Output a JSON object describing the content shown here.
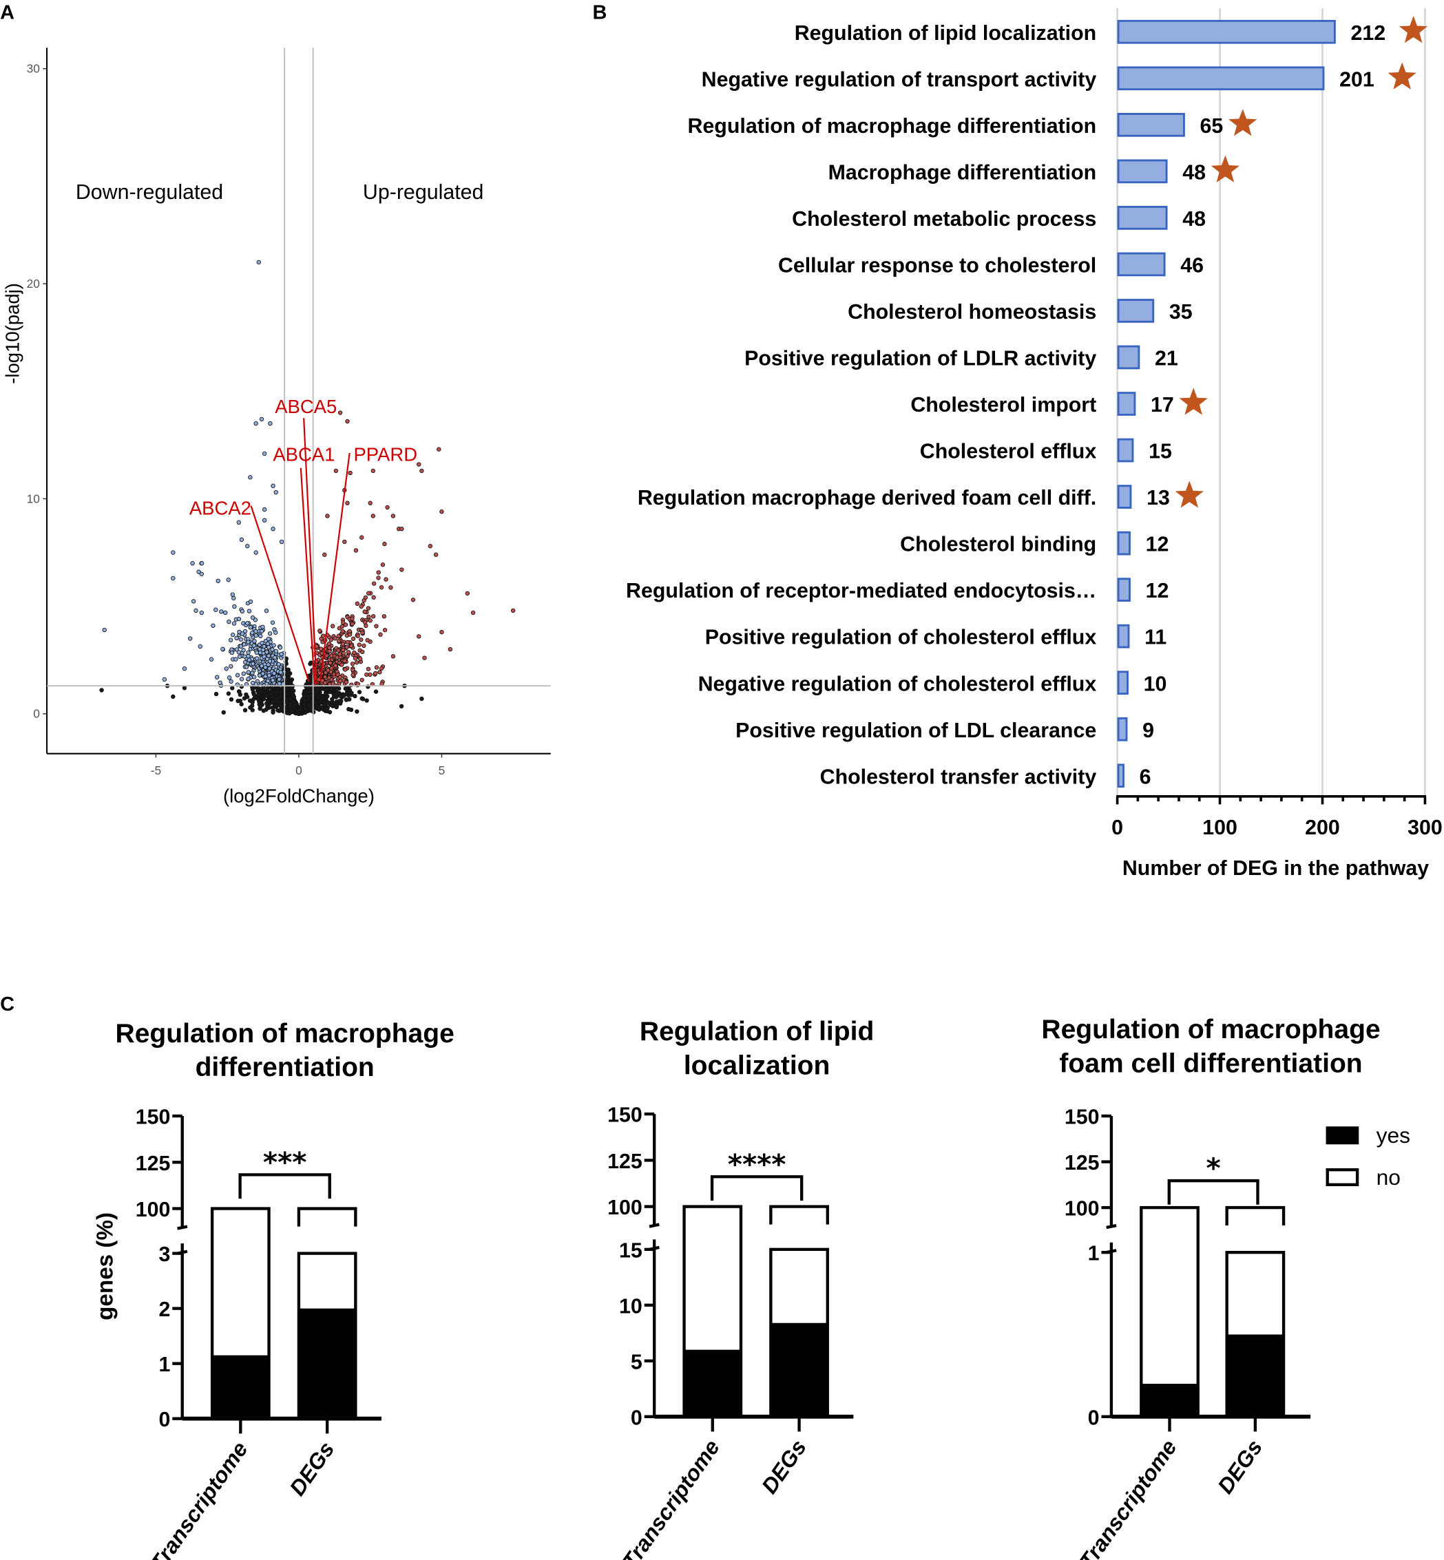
{
  "panel_labels": {
    "a": "A",
    "b": "B",
    "c": "C"
  },
  "chart_data": [
    {
      "type": "scatter",
      "panel": "A",
      "title": "",
      "xlabel": "(log2FoldChange)",
      "ylabel": "-log10(padj)",
      "xlim": [
        -8.8,
        8.8
      ],
      "ylim": [
        -1.9,
        31.2
      ],
      "xticks": [
        -5,
        0,
        5
      ],
      "yticks": [
        0,
        10,
        20,
        30
      ],
      "thresholds": {
        "log2fc": [
          -0.5,
          0.5
        ],
        "neg_log10_padj": 1.3
      },
      "annotations": {
        "down": "Down-regulated",
        "up": "Up-regulated"
      },
      "colors": {
        "down": "#8fb0e0",
        "up": "#c0504d",
        "ns": "#1a1a1a",
        "label": "#cc0000",
        "threshold_line": "#bdbdbd"
      },
      "labeled_genes": [
        {
          "name": "ABCA5",
          "x": 0.62,
          "y": 1.4
        },
        {
          "name": "ABCA1",
          "x": 0.55,
          "y": 1.4
        },
        {
          "name": "PPARD",
          "x": 0.75,
          "y": 1.5
        },
        {
          "name": "ABCA2",
          "x": 0.35,
          "y": 1.5
        }
      ],
      "points": [
        [
          -1.4,
          21.0
        ],
        [
          -6.9,
          1.1
        ],
        [
          -6.8,
          3.9
        ],
        [
          -4.4,
          7.5
        ],
        [
          -4.4,
          6.3
        ],
        [
          -3.5,
          6.6
        ],
        [
          -3.4,
          6.5
        ],
        [
          -4.7,
          1.6
        ],
        [
          -4.6,
          1.3
        ],
        [
          -4.4,
          0.8
        ],
        [
          -4.0,
          1.2
        ],
        [
          -4.0,
          2.1
        ],
        [
          -3.8,
          3.5
        ],
        [
          -3.6,
          4.8
        ],
        [
          -3.4,
          4.7
        ],
        [
          -3.0,
          4.1
        ],
        [
          -1.5,
          13.5
        ],
        [
          -1.3,
          13.7
        ],
        [
          -1.0,
          13.5
        ],
        [
          -1.2,
          12.1
        ],
        [
          -1.7,
          11.0
        ],
        [
          -0.9,
          10.6
        ],
        [
          -0.8,
          10.3
        ],
        [
          -1.2,
          9.5
        ],
        [
          -1.2,
          9.0
        ],
        [
          -0.9,
          8.6
        ],
        [
          -2.1,
          8.9
        ],
        [
          -0.6,
          8.0
        ],
        [
          -1.8,
          7.8
        ],
        [
          -1.5,
          7.5
        ],
        [
          -2.0,
          8.1
        ],
        [
          1.45,
          14.0
        ],
        [
          1.7,
          13.6
        ],
        [
          1.3,
          11.3
        ],
        [
          1.8,
          11.2
        ],
        [
          2.6,
          11.3
        ],
        [
          4.9,
          12.3
        ],
        [
          4.2,
          11.6
        ],
        [
          4.3,
          11.3
        ],
        [
          5.0,
          9.4
        ],
        [
          1.6,
          10.4
        ],
        [
          1.0,
          9.2
        ],
        [
          1.7,
          9.8
        ],
        [
          2.5,
          9.8
        ],
        [
          2.6,
          9.2
        ],
        [
          3.1,
          9.6
        ],
        [
          3.3,
          9.2
        ],
        [
          3.5,
          8.6
        ],
        [
          3.6,
          8.6
        ],
        [
          4.6,
          7.8
        ],
        [
          4.8,
          7.4
        ],
        [
          2.2,
          8.2
        ],
        [
          2.0,
          7.6
        ],
        [
          3.0,
          7.9
        ],
        [
          1.6,
          8.0
        ],
        [
          0.9,
          7.4
        ],
        [
          3.6,
          6.7
        ],
        [
          5.9,
          5.6
        ],
        [
          6.1,
          4.7
        ],
        [
          7.5,
          4.8
        ],
        [
          5.3,
          3.0
        ],
        [
          5.0,
          3.8
        ],
        [
          4.2,
          3.6
        ],
        [
          4.0,
          5.3
        ],
        [
          4.4,
          2.6
        ],
        [
          4.3,
          0.7
        ],
        [
          3.7,
          1.3
        ]
      ]
    },
    {
      "type": "bar",
      "orientation": "horizontal",
      "panel": "B",
      "xlabel": "Number of DEG in the pathway",
      "xlim": [
        0,
        300
      ],
      "xticks": [
        0,
        100,
        200,
        300
      ],
      "grid": true,
      "colors": {
        "bar": "#95aee0",
        "bar_edge": "#3a64c2",
        "star": "#c0561e"
      },
      "categories": [
        "Regulation of lipid localization",
        "Negative regulation of transport activity",
        "Regulation of macrophage differentiation",
        "Macrophage differentiation",
        "Cholesterol metabolic process",
        "Cellular response to cholesterol",
        "Cholesterol homeostasis",
        "Positive regulation of LDLR activity",
        "Cholesterol import",
        "Cholesterol efflux",
        "Regulation macrophage derived foam cell diff.",
        "Cholesterol binding",
        "Regulation of receptor-mediated endocytosis…",
        "Positive regulation of cholesterol efflux",
        "Negative regulation of cholesterol efflux",
        "Positive regulation of LDL clearance",
        "Cholesterol transfer activity"
      ],
      "values": [
        212,
        201,
        65,
        48,
        48,
        46,
        35,
        21,
        17,
        15,
        13,
        12,
        12,
        11,
        10,
        9,
        6
      ],
      "starred": [
        true,
        true,
        true,
        true,
        false,
        false,
        false,
        false,
        true,
        false,
        true,
        false,
        false,
        false,
        false,
        false,
        false
      ]
    },
    {
      "type": "bar",
      "stacked": true,
      "panel": "C",
      "title": "Regulation of macrophage differentiation",
      "title_lines": [
        "Regulation of macrophage",
        "differentiation"
      ],
      "ylabel": "genes (%)",
      "categories": [
        "Transcriptome",
        "DEGs"
      ],
      "series": [
        {
          "name": "yes",
          "values": [
            1.15,
            2.0
          ]
        },
        {
          "name": "no",
          "values": [
            98.85,
            98.0
          ]
        }
      ],
      "lower_ticks": [
        0,
        1,
        2,
        3
      ],
      "upper_ticks": [
        100,
        125,
        150
      ],
      "significance": "***"
    },
    {
      "type": "bar",
      "stacked": true,
      "panel": "C",
      "title": "Regulation of lipid localization",
      "title_lines": [
        "Regulation of lipid",
        "localization"
      ],
      "ylabel": "",
      "categories": [
        "Transcriptome",
        "DEGs"
      ],
      "series": [
        {
          "name": "yes",
          "values": [
            6.0,
            8.4
          ]
        },
        {
          "name": "no",
          "values": [
            94.0,
            91.6
          ]
        }
      ],
      "lower_ticks": [
        0,
        5,
        10,
        15
      ],
      "upper_ticks": [
        100,
        125,
        150
      ],
      "significance": "****"
    },
    {
      "type": "bar",
      "stacked": true,
      "panel": "C",
      "title": "Regulation of macrophage foam cell differentiation",
      "title_lines": [
        "Regulation of macrophage",
        "foam cell differentiation"
      ],
      "ylabel": "",
      "categories": [
        "Transcriptome",
        "DEGs"
      ],
      "series": [
        {
          "name": "yes",
          "values": [
            0.2,
            0.5
          ]
        },
        {
          "name": "no",
          "values": [
            99.8,
            99.5
          ]
        }
      ],
      "lower_ticks": [
        0,
        1
      ],
      "upper_ticks": [
        100,
        125,
        150
      ],
      "significance": "*",
      "legend": [
        {
          "label": "yes",
          "fill": "#000000"
        },
        {
          "label": "no",
          "fill": "#ffffff"
        }
      ]
    }
  ]
}
